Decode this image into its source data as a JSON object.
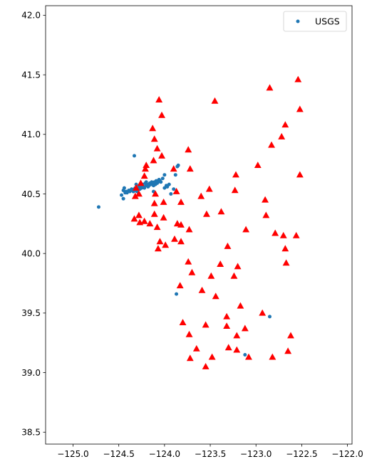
{
  "chart_data": {
    "type": "scatter",
    "title": "",
    "xlabel": "",
    "ylabel": "",
    "xlim": [
      -125.3,
      -121.95
    ],
    "ylim": [
      38.4,
      42.08
    ],
    "xticks": [
      -125.0,
      -124.5,
      -124.0,
      -123.5,
      -123.0,
      -122.5,
      -122.0
    ],
    "xtick_labels": [
      "−125.0",
      "−124.5",
      "−124.0",
      "−123.5",
      "−123.0",
      "−122.5",
      "−122.0"
    ],
    "yticks": [
      38.5,
      39.0,
      39.5,
      40.0,
      40.5,
      41.0,
      41.5,
      42.0
    ],
    "ytick_labels": [
      "38.5",
      "39.0",
      "39.5",
      "40.0",
      "40.5",
      "41.0",
      "41.5",
      "42.0"
    ],
    "grid": false,
    "legend": {
      "position": "top-right",
      "entries": [
        "USGS"
      ]
    },
    "series": [
      {
        "name": "USGS",
        "marker": "circle",
        "color": "#1f77b4",
        "points": [
          [
            -124.72,
            40.39
          ],
          [
            -124.47,
            40.49
          ],
          [
            -124.45,
            40.46
          ],
          [
            -124.45,
            40.53
          ],
          [
            -124.44,
            40.55
          ],
          [
            -124.43,
            40.51
          ],
          [
            -124.42,
            40.52
          ],
          [
            -124.41,
            40.51
          ],
          [
            -124.4,
            40.52
          ],
          [
            -124.39,
            40.53
          ],
          [
            -124.38,
            40.52
          ],
          [
            -124.37,
            40.53
          ],
          [
            -124.36,
            40.54
          ],
          [
            -124.35,
            40.53
          ],
          [
            -124.34,
            40.52
          ],
          [
            -124.33,
            40.54
          ],
          [
            -124.32,
            40.55
          ],
          [
            -124.31,
            40.53
          ],
          [
            -124.3,
            40.52
          ],
          [
            -124.29,
            40.54
          ],
          [
            -124.28,
            40.56
          ],
          [
            -124.27,
            40.54
          ],
          [
            -124.26,
            40.57
          ],
          [
            -124.25,
            40.55
          ],
          [
            -124.24,
            40.58
          ],
          [
            -124.23,
            40.56
          ],
          [
            -124.22,
            40.55
          ],
          [
            -124.21,
            40.59
          ],
          [
            -124.2,
            40.57
          ],
          [
            -124.19,
            40.58
          ],
          [
            -124.18,
            40.56
          ],
          [
            -124.17,
            40.57
          ],
          [
            -124.16,
            40.59
          ],
          [
            -124.15,
            40.58
          ],
          [
            -124.14,
            40.6
          ],
          [
            -124.13,
            40.59
          ],
          [
            -124.12,
            40.57
          ],
          [
            -124.11,
            40.6
          ],
          [
            -124.1,
            40.58
          ],
          [
            -124.09,
            40.61
          ],
          [
            -124.08,
            40.59
          ],
          [
            -124.07,
            40.6
          ],
          [
            -124.06,
            40.62
          ],
          [
            -124.05,
            40.61
          ],
          [
            -124.04,
            40.6
          ],
          [
            -124.02,
            40.63
          ],
          [
            -124.0,
            40.55
          ],
          [
            -123.98,
            40.57
          ],
          [
            -123.97,
            40.56
          ],
          [
            -123.95,
            40.58
          ],
          [
            -123.93,
            40.5
          ],
          [
            -123.9,
            40.54
          ],
          [
            -123.88,
            40.66
          ],
          [
            -123.86,
            40.73
          ],
          [
            -123.85,
            40.74
          ],
          [
            -124.33,
            40.82
          ],
          [
            -124.31,
            40.58
          ],
          [
            -124.0,
            40.66
          ],
          [
            -123.87,
            39.66
          ],
          [
            -122.85,
            39.47
          ],
          [
            -123.12,
            39.15
          ],
          [
            -124.12,
            40.52
          ],
          [
            -124.2,
            40.6
          ]
        ]
      },
      {
        "name": "",
        "marker": "triangle",
        "color": "#ff0000",
        "points": [
          [
            -124.06,
            41.29
          ],
          [
            -124.03,
            41.16
          ],
          [
            -124.13,
            41.05
          ],
          [
            -124.11,
            40.96
          ],
          [
            -124.08,
            40.88
          ],
          [
            -124.03,
            40.82
          ],
          [
            -124.12,
            40.78
          ],
          [
            -124.2,
            40.74
          ],
          [
            -124.21,
            40.71
          ],
          [
            -124.22,
            40.65
          ],
          [
            -124.26,
            40.59
          ],
          [
            -124.31,
            40.55
          ],
          [
            -124.28,
            40.5
          ],
          [
            -124.32,
            40.48
          ],
          [
            -124.1,
            40.5
          ],
          [
            -124.11,
            40.42
          ],
          [
            -124.11,
            40.33
          ],
          [
            -124.33,
            40.29
          ],
          [
            -124.28,
            40.32
          ],
          [
            -124.27,
            40.26
          ],
          [
            -124.22,
            40.27
          ],
          [
            -124.16,
            40.25
          ],
          [
            -124.08,
            40.22
          ],
          [
            -124.05,
            40.1
          ],
          [
            -124.01,
            40.3
          ],
          [
            -124.01,
            40.43
          ],
          [
            -123.9,
            40.71
          ],
          [
            -123.74,
            40.87
          ],
          [
            -123.72,
            40.71
          ],
          [
            -123.87,
            40.52
          ],
          [
            -123.82,
            40.43
          ],
          [
            -123.86,
            40.25
          ],
          [
            -123.82,
            40.24
          ],
          [
            -123.73,
            40.2
          ],
          [
            -123.82,
            40.1
          ],
          [
            -123.89,
            40.12
          ],
          [
            -123.99,
            40.07
          ],
          [
            -124.07,
            40.04
          ],
          [
            -123.6,
            40.48
          ],
          [
            -123.51,
            40.54
          ],
          [
            -123.54,
            40.33
          ],
          [
            -123.38,
            40.35
          ],
          [
            -123.22,
            40.66
          ],
          [
            -123.23,
            40.53
          ],
          [
            -123.11,
            40.2
          ],
          [
            -123.45,
            41.28
          ],
          [
            -122.98,
            40.74
          ],
          [
            -122.85,
            41.39
          ],
          [
            -122.83,
            40.91
          ],
          [
            -122.72,
            40.98
          ],
          [
            -122.68,
            41.08
          ],
          [
            -122.54,
            41.46
          ],
          [
            -122.52,
            41.21
          ],
          [
            -122.52,
            40.66
          ],
          [
            -122.9,
            40.45
          ],
          [
            -122.89,
            40.32
          ],
          [
            -122.79,
            40.17
          ],
          [
            -122.7,
            40.15
          ],
          [
            -122.56,
            40.15
          ],
          [
            -122.68,
            40.04
          ],
          [
            -122.67,
            39.92
          ],
          [
            -123.31,
            40.06
          ],
          [
            -123.74,
            39.93
          ],
          [
            -123.7,
            39.84
          ],
          [
            -123.83,
            39.73
          ],
          [
            -123.8,
            39.42
          ],
          [
            -123.59,
            39.69
          ],
          [
            -123.49,
            39.81
          ],
          [
            -123.39,
            39.91
          ],
          [
            -123.24,
            39.81
          ],
          [
            -123.2,
            39.89
          ],
          [
            -123.44,
            39.64
          ],
          [
            -123.32,
            39.47
          ],
          [
            -123.17,
            39.56
          ],
          [
            -123.12,
            39.37
          ],
          [
            -123.32,
            39.39
          ],
          [
            -123.21,
            39.31
          ],
          [
            -122.93,
            39.5
          ],
          [
            -122.62,
            39.31
          ],
          [
            -122.65,
            39.18
          ],
          [
            -122.82,
            39.13
          ],
          [
            -123.08,
            39.13
          ],
          [
            -123.21,
            39.19
          ],
          [
            -123.3,
            39.21
          ],
          [
            -123.48,
            39.13
          ],
          [
            -123.55,
            39.05
          ],
          [
            -123.55,
            39.4
          ],
          [
            -123.73,
            39.32
          ],
          [
            -123.65,
            39.2
          ],
          [
            -123.72,
            39.12
          ]
        ]
      }
    ]
  }
}
